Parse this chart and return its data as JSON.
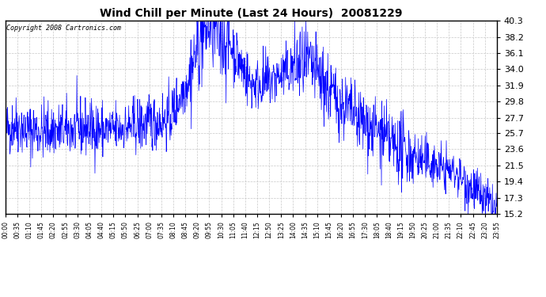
{
  "title": "Wind Chill per Minute (Last 24 Hours)  20081229",
  "copyright": "Copyright 2008 Cartronics.com",
  "line_color": "#0000ff",
  "bg_color": "#ffffff",
  "grid_color": "#c8c8c8",
  "ylim": [
    15.2,
    40.3
  ],
  "yticks": [
    15.2,
    17.3,
    19.4,
    21.5,
    23.6,
    25.7,
    27.7,
    29.8,
    31.9,
    34.0,
    36.1,
    38.2,
    40.3
  ],
  "xtick_labels": [
    "00:00",
    "00:35",
    "01:10",
    "01:45",
    "02:20",
    "02:55",
    "03:30",
    "04:05",
    "04:40",
    "05:15",
    "05:50",
    "06:25",
    "07:00",
    "07:35",
    "08:10",
    "08:45",
    "09:20",
    "09:55",
    "10:30",
    "11:05",
    "11:40",
    "12:15",
    "12:50",
    "13:25",
    "14:00",
    "14:35",
    "15:10",
    "15:45",
    "16:20",
    "16:55",
    "17:30",
    "18:05",
    "18:40",
    "19:15",
    "19:50",
    "20:25",
    "21:00",
    "21:35",
    "22:10",
    "22:45",
    "23:20",
    "23:55"
  ],
  "n_minutes": 1440,
  "title_fontsize": 10,
  "ytick_fontsize": 8,
  "xtick_fontsize": 5.5,
  "copyright_fontsize": 6
}
